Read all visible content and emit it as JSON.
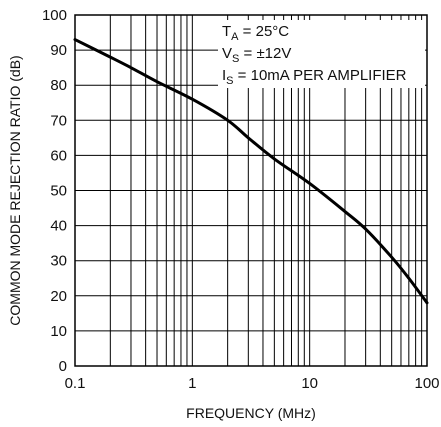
{
  "chart_data": {
    "type": "line",
    "xlabel": "FREQUENCY (MHz)",
    "ylabel": "COMMON MODE REJECTION RATIO (dB)",
    "x_scale": "log",
    "xlim": [
      0.1,
      100
    ],
    "ylim": [
      0,
      100
    ],
    "x_ticks": [
      0.1,
      1,
      10,
      100
    ],
    "x_tick_labels": [
      "0.1",
      "1",
      "10",
      "100"
    ],
    "y_ticks": [
      0,
      10,
      20,
      30,
      40,
      50,
      60,
      70,
      80,
      90,
      100
    ],
    "y_tick_labels": [
      "0",
      "10",
      "20",
      "30",
      "40",
      "50",
      "60",
      "70",
      "80",
      "90",
      "100"
    ],
    "grid": true,
    "annotations": [
      {
        "main": "T",
        "sub": "A",
        "rest": " = 25°C"
      },
      {
        "main": "V",
        "sub": "S",
        "rest": " = ±12V"
      },
      {
        "main": "I",
        "sub": "S",
        "rest": " = 10mA PER AMPLIFIER"
      }
    ],
    "series": [
      {
        "color": "#000000",
        "x": [
          0.1,
          0.2,
          0.3,
          0.5,
          1,
          2,
          3,
          5,
          10,
          20,
          30,
          50,
          70,
          100
        ],
        "y": [
          93,
          88,
          85,
          81,
          76,
          70,
          65,
          59,
          52,
          44,
          39,
          31,
          25,
          18
        ]
      }
    ]
  }
}
